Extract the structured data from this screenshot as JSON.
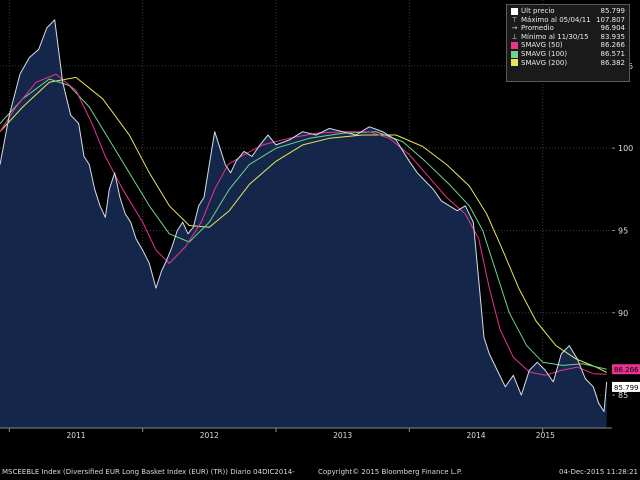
{
  "chart_data": {
    "type": "line",
    "x_tick_labels": [
      "2011",
      "2012",
      "2013",
      "2014",
      "2015"
    ],
    "y_ticks": [
      85,
      90,
      95,
      100,
      105
    ],
    "ylim": [
      83,
      109
    ],
    "grid": true,
    "legend_position": "top-right",
    "legend": [
      {
        "label": "Últ precio",
        "value": "85.799",
        "symbol": "square",
        "color": "#ffffff"
      },
      {
        "label": "Máximo al 05/04/11",
        "value": "107.807",
        "symbol": "max-icon",
        "color": "#dddddd"
      },
      {
        "label": "Promedio",
        "value": "96.904",
        "symbol": "avg-icon",
        "color": "#dddddd"
      },
      {
        "label": "Mínimo al 11/30/15",
        "value": "83.935",
        "symbol": "min-icon",
        "color": "#dddddd"
      },
      {
        "label": "SMAVG (50)",
        "value": "86.266",
        "symbol": "square",
        "color": "#e8338f"
      },
      {
        "label": "SMAVG (100)",
        "value": "86.571",
        "symbol": "square",
        "color": "#6fd38c"
      },
      {
        "label": "SMAVG (200)",
        "value": "86.382",
        "symbol": "square",
        "color": "#e8e35a"
      }
    ],
    "right_axis_badges": [
      {
        "value": 86.266,
        "text": "86.266",
        "color": "#e8338f"
      },
      {
        "value": 85.799,
        "text": "85.799",
        "color": "#ffffff"
      }
    ],
    "series": [
      {
        "name": "Últ precio",
        "color": "#d7dde6",
        "values": [
          [
            2010.93,
            99.0
          ],
          [
            2011.0,
            102.0
          ],
          [
            2011.08,
            104.5
          ],
          [
            2011.15,
            105.5
          ],
          [
            2011.22,
            106.0
          ],
          [
            2011.28,
            107.3
          ],
          [
            2011.34,
            107.8
          ],
          [
            2011.4,
            104.0
          ],
          [
            2011.46,
            102.0
          ],
          [
            2011.52,
            101.5
          ],
          [
            2011.56,
            99.5
          ],
          [
            2011.6,
            99.0
          ],
          [
            2011.64,
            97.5
          ],
          [
            2011.68,
            96.5
          ],
          [
            2011.72,
            95.8
          ],
          [
            2011.75,
            97.5
          ],
          [
            2011.79,
            98.5
          ],
          [
            2011.83,
            97.0
          ],
          [
            2011.87,
            96.0
          ],
          [
            2011.91,
            95.5
          ],
          [
            2011.95,
            94.5
          ],
          [
            2012.0,
            93.8
          ],
          [
            2012.05,
            93.0
          ],
          [
            2012.1,
            91.5
          ],
          [
            2012.14,
            92.5
          ],
          [
            2012.18,
            93.2
          ],
          [
            2012.22,
            94.0
          ],
          [
            2012.26,
            95.0
          ],
          [
            2012.3,
            95.5
          ],
          [
            2012.34,
            94.8
          ],
          [
            2012.38,
            95.2
          ],
          [
            2012.42,
            96.5
          ],
          [
            2012.46,
            97.0
          ],
          [
            2012.5,
            99.0
          ],
          [
            2012.54,
            101.0
          ],
          [
            2012.58,
            100.0
          ],
          [
            2012.62,
            99.0
          ],
          [
            2012.66,
            98.5
          ],
          [
            2012.7,
            99.2
          ],
          [
            2012.76,
            99.8
          ],
          [
            2012.82,
            99.5
          ],
          [
            2012.88,
            100.2
          ],
          [
            2012.94,
            100.8
          ],
          [
            2013.0,
            100.2
          ],
          [
            2013.1,
            100.5
          ],
          [
            2013.2,
            101.0
          ],
          [
            2013.3,
            100.8
          ],
          [
            2013.4,
            101.2
          ],
          [
            2013.5,
            101.0
          ],
          [
            2013.6,
            100.8
          ],
          [
            2013.7,
            101.3
          ],
          [
            2013.8,
            101.0
          ],
          [
            2013.9,
            100.5
          ],
          [
            2014.0,
            99.2
          ],
          [
            2014.06,
            98.5
          ],
          [
            2014.12,
            98.0
          ],
          [
            2014.18,
            97.5
          ],
          [
            2014.24,
            96.8
          ],
          [
            2014.3,
            96.5
          ],
          [
            2014.36,
            96.2
          ],
          [
            2014.42,
            96.5
          ],
          [
            2014.48,
            95.5
          ],
          [
            2014.52,
            92.0
          ],
          [
            2014.56,
            88.5
          ],
          [
            2014.6,
            87.5
          ],
          [
            2014.66,
            86.5
          ],
          [
            2014.72,
            85.5
          ],
          [
            2014.78,
            86.2
          ],
          [
            2014.84,
            85.0
          ],
          [
            2014.9,
            86.5
          ],
          [
            2014.96,
            87.0
          ],
          [
            2015.02,
            86.5
          ],
          [
            2015.08,
            85.8
          ],
          [
            2015.14,
            87.5
          ],
          [
            2015.2,
            88.0
          ],
          [
            2015.26,
            87.2
          ],
          [
            2015.32,
            86.0
          ],
          [
            2015.38,
            85.5
          ],
          [
            2015.42,
            84.5
          ],
          [
            2015.46,
            84.0
          ],
          [
            2015.48,
            85.8
          ]
        ]
      },
      {
        "name": "SMAVG (50)",
        "color": "#e8338f",
        "values": [
          [
            2010.93,
            101.0
          ],
          [
            2011.05,
            102.5
          ],
          [
            2011.2,
            104.0
          ],
          [
            2011.35,
            104.5
          ],
          [
            2011.5,
            103.5
          ],
          [
            2011.62,
            101.5
          ],
          [
            2011.72,
            99.5
          ],
          [
            2011.85,
            97.5
          ],
          [
            2012.0,
            95.5
          ],
          [
            2012.1,
            93.8
          ],
          [
            2012.2,
            93.0
          ],
          [
            2012.32,
            94.0
          ],
          [
            2012.44,
            95.5
          ],
          [
            2012.54,
            97.5
          ],
          [
            2012.64,
            99.0
          ],
          [
            2012.76,
            99.6
          ],
          [
            2012.9,
            100.2
          ],
          [
            2013.1,
            100.6
          ],
          [
            2013.3,
            100.9
          ],
          [
            2013.5,
            101.0
          ],
          [
            2013.7,
            101.0
          ],
          [
            2013.85,
            100.6
          ],
          [
            2014.0,
            99.6
          ],
          [
            2014.14,
            98.3
          ],
          [
            2014.28,
            97.0
          ],
          [
            2014.42,
            96.0
          ],
          [
            2014.52,
            94.5
          ],
          [
            2014.6,
            91.5
          ],
          [
            2014.68,
            89.0
          ],
          [
            2014.78,
            87.3
          ],
          [
            2014.9,
            86.4
          ],
          [
            2015.02,
            86.2
          ],
          [
            2015.14,
            86.5
          ],
          [
            2015.26,
            86.7
          ],
          [
            2015.38,
            86.3
          ],
          [
            2015.48,
            86.27
          ]
        ]
      },
      {
        "name": "SMAVG (100)",
        "color": "#6fd38c",
        "values": [
          [
            2010.93,
            101.5
          ],
          [
            2011.1,
            103.0
          ],
          [
            2011.3,
            104.2
          ],
          [
            2011.45,
            103.8
          ],
          [
            2011.6,
            102.5
          ],
          [
            2011.75,
            100.5
          ],
          [
            2011.9,
            98.5
          ],
          [
            2012.05,
            96.5
          ],
          [
            2012.2,
            94.8
          ],
          [
            2012.35,
            94.3
          ],
          [
            2012.5,
            95.5
          ],
          [
            2012.65,
            97.5
          ],
          [
            2012.8,
            99.0
          ],
          [
            2013.0,
            100.0
          ],
          [
            2013.25,
            100.6
          ],
          [
            2013.5,
            100.9
          ],
          [
            2013.75,
            101.0
          ],
          [
            2013.95,
            100.4
          ],
          [
            2014.12,
            99.2
          ],
          [
            2014.3,
            97.8
          ],
          [
            2014.45,
            96.5
          ],
          [
            2014.55,
            95.0
          ],
          [
            2014.65,
            92.5
          ],
          [
            2014.75,
            90.0
          ],
          [
            2014.88,
            88.0
          ],
          [
            2015.0,
            87.0
          ],
          [
            2015.15,
            86.8
          ],
          [
            2015.3,
            86.9
          ],
          [
            2015.48,
            86.57
          ]
        ]
      },
      {
        "name": "SMAVG (200)",
        "color": "#e8e35a",
        "values": [
          [
            2010.93,
            101.0
          ],
          [
            2011.1,
            102.5
          ],
          [
            2011.3,
            104.0
          ],
          [
            2011.5,
            104.3
          ],
          [
            2011.7,
            103.0
          ],
          [
            2011.9,
            100.8
          ],
          [
            2012.05,
            98.5
          ],
          [
            2012.2,
            96.5
          ],
          [
            2012.35,
            95.3
          ],
          [
            2012.5,
            95.2
          ],
          [
            2012.65,
            96.2
          ],
          [
            2012.8,
            97.8
          ],
          [
            2013.0,
            99.2
          ],
          [
            2013.2,
            100.2
          ],
          [
            2013.4,
            100.6
          ],
          [
            2013.65,
            100.8
          ],
          [
            2013.9,
            100.8
          ],
          [
            2014.1,
            100.1
          ],
          [
            2014.28,
            99.0
          ],
          [
            2014.45,
            97.7
          ],
          [
            2014.58,
            96.0
          ],
          [
            2014.7,
            93.8
          ],
          [
            2014.82,
            91.5
          ],
          [
            2014.95,
            89.5
          ],
          [
            2015.1,
            88.0
          ],
          [
            2015.25,
            87.2
          ],
          [
            2015.4,
            86.7
          ],
          [
            2015.48,
            86.38
          ]
        ]
      }
    ]
  },
  "footer": {
    "left": "MSCEEBLE Index (Diversified EUR Long Basket Index (EUR) (TR))  Diario 04DIC2014-",
    "center": "Copyright© 2015 Bloomberg Finance L.P.",
    "right": "04-Dec-2015 11:28:21"
  }
}
